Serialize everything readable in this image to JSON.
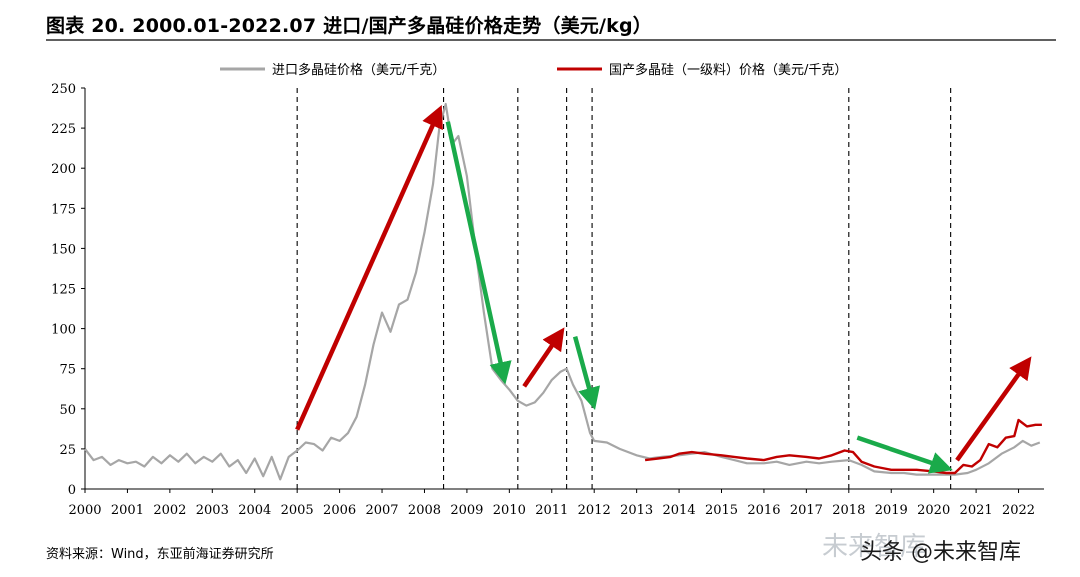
{
  "header": {
    "title": "图表 20. 2000.01-2022.07 进口/国产多晶硅价格走势（美元/kg）"
  },
  "footer": {
    "source": "资料来源：Wind，东亚前海证券研究所",
    "watermark": "未来智库",
    "credit": "头条 @未来智库"
  },
  "colors": {
    "imported": "#a6a6a6",
    "domestic": "#c00000",
    "arrow_up": "#c00000",
    "arrow_down": "#1aaa4a"
  },
  "chart_data": {
    "type": "line",
    "title": "",
    "xlabel": "",
    "ylabel": "",
    "xlim": [
      2000,
      2022.6
    ],
    "ylim": [
      0,
      250
    ],
    "yticks": [
      0,
      25,
      50,
      75,
      100,
      125,
      150,
      175,
      200,
      225,
      250
    ],
    "xticks": [
      2000,
      2001,
      2002,
      2003,
      2004,
      2005,
      2006,
      2007,
      2008,
      2009,
      2010,
      2011,
      2012,
      2013,
      2014,
      2015,
      2016,
      2017,
      2018,
      2019,
      2020,
      2021,
      2022
    ],
    "grid": false,
    "legend_position": "top",
    "series": [
      {
        "name": "进口多晶硅价格（美元/千克）",
        "color": "#a6a6a6",
        "points": [
          [
            2000.0,
            25
          ],
          [
            2000.2,
            18
          ],
          [
            2000.4,
            20
          ],
          [
            2000.6,
            15
          ],
          [
            2000.8,
            18
          ],
          [
            2001.0,
            16
          ],
          [
            2001.2,
            17
          ],
          [
            2001.4,
            14
          ],
          [
            2001.6,
            20
          ],
          [
            2001.8,
            16
          ],
          [
            2002.0,
            21
          ],
          [
            2002.2,
            17
          ],
          [
            2002.4,
            22
          ],
          [
            2002.6,
            16
          ],
          [
            2002.8,
            20
          ],
          [
            2003.0,
            17
          ],
          [
            2003.2,
            22
          ],
          [
            2003.4,
            14
          ],
          [
            2003.6,
            18
          ],
          [
            2003.8,
            10
          ],
          [
            2004.0,
            19
          ],
          [
            2004.2,
            8
          ],
          [
            2004.4,
            20
          ],
          [
            2004.6,
            6
          ],
          [
            2004.8,
            20
          ],
          [
            2005.0,
            24
          ],
          [
            2005.2,
            29
          ],
          [
            2005.4,
            28
          ],
          [
            2005.6,
            24
          ],
          [
            2005.8,
            32
          ],
          [
            2006.0,
            30
          ],
          [
            2006.2,
            35
          ],
          [
            2006.4,
            45
          ],
          [
            2006.6,
            65
          ],
          [
            2006.8,
            90
          ],
          [
            2007.0,
            110
          ],
          [
            2007.2,
            98
          ],
          [
            2007.4,
            115
          ],
          [
            2007.6,
            118
          ],
          [
            2007.8,
            135
          ],
          [
            2008.0,
            160
          ],
          [
            2008.2,
            190
          ],
          [
            2008.35,
            225
          ],
          [
            2008.5,
            240
          ],
          [
            2008.65,
            215
          ],
          [
            2008.8,
            220
          ],
          [
            2009.0,
            195
          ],
          [
            2009.2,
            150
          ],
          [
            2009.4,
            110
          ],
          [
            2009.6,
            75
          ],
          [
            2009.8,
            68
          ],
          [
            2010.0,
            62
          ],
          [
            2010.2,
            55
          ],
          [
            2010.4,
            52
          ],
          [
            2010.6,
            54
          ],
          [
            2010.8,
            60
          ],
          [
            2011.0,
            68
          ],
          [
            2011.2,
            73
          ],
          [
            2011.35,
            75
          ],
          [
            2011.5,
            65
          ],
          [
            2011.7,
            55
          ],
          [
            2011.9,
            35
          ],
          [
            2012.0,
            30
          ],
          [
            2012.3,
            29
          ],
          [
            2012.6,
            25
          ],
          [
            2013.0,
            21
          ],
          [
            2013.3,
            19
          ],
          [
            2013.6,
            20
          ],
          [
            2014.0,
            21
          ],
          [
            2014.3,
            22
          ],
          [
            2014.6,
            23
          ],
          [
            2015.0,
            20
          ],
          [
            2015.3,
            18
          ],
          [
            2015.6,
            16
          ],
          [
            2016.0,
            16
          ],
          [
            2016.3,
            17
          ],
          [
            2016.6,
            15
          ],
          [
            2017.0,
            17
          ],
          [
            2017.3,
            16
          ],
          [
            2017.6,
            17
          ],
          [
            2018.0,
            18
          ],
          [
            2018.3,
            15
          ],
          [
            2018.6,
            11
          ],
          [
            2019.0,
            10
          ],
          [
            2019.3,
            10
          ],
          [
            2019.6,
            9
          ],
          [
            2020.0,
            9
          ],
          [
            2020.3,
            9
          ],
          [
            2020.5,
            9
          ],
          [
            2020.8,
            10
          ],
          [
            2021.0,
            12
          ],
          [
            2021.3,
            16
          ],
          [
            2021.6,
            22
          ],
          [
            2021.9,
            26
          ],
          [
            2022.1,
            30
          ],
          [
            2022.3,
            27
          ],
          [
            2022.5,
            29
          ]
        ]
      },
      {
        "name": "国产多晶硅（一级料）价格（美元/千克）",
        "color": "#c00000",
        "points": [
          [
            2013.2,
            18
          ],
          [
            2013.5,
            19
          ],
          [
            2013.8,
            20
          ],
          [
            2014.0,
            22
          ],
          [
            2014.3,
            23
          ],
          [
            2014.6,
            22
          ],
          [
            2015.0,
            21
          ],
          [
            2015.3,
            20
          ],
          [
            2015.6,
            19
          ],
          [
            2016.0,
            18
          ],
          [
            2016.3,
            20
          ],
          [
            2016.6,
            21
          ],
          [
            2017.0,
            20
          ],
          [
            2017.3,
            19
          ],
          [
            2017.6,
            21
          ],
          [
            2017.9,
            24
          ],
          [
            2018.1,
            23
          ],
          [
            2018.3,
            17
          ],
          [
            2018.6,
            14
          ],
          [
            2019.0,
            12
          ],
          [
            2019.3,
            12
          ],
          [
            2019.6,
            12
          ],
          [
            2020.0,
            11
          ],
          [
            2020.3,
            10
          ],
          [
            2020.5,
            10
          ],
          [
            2020.7,
            15
          ],
          [
            2020.9,
            14
          ],
          [
            2021.1,
            18
          ],
          [
            2021.3,
            28
          ],
          [
            2021.5,
            26
          ],
          [
            2021.7,
            32
          ],
          [
            2021.9,
            33
          ],
          [
            2022.0,
            43
          ],
          [
            2022.2,
            39
          ],
          [
            2022.4,
            40
          ],
          [
            2022.55,
            40
          ]
        ]
      }
    ],
    "vlines": [
      2005.0,
      2008.45,
      2010.2,
      2011.35,
      2011.95,
      2018.0,
      2020.4
    ],
    "arrows": [
      {
        "direction": "up",
        "from": [
          2005.0,
          37
        ],
        "to": [
          2008.3,
          233
        ]
      },
      {
        "direction": "down",
        "from": [
          2008.55,
          229
        ],
        "to": [
          2009.85,
          72
        ]
      },
      {
        "direction": "up",
        "from": [
          2010.35,
          64
        ],
        "to": [
          2011.15,
          95
        ]
      },
      {
        "direction": "down",
        "from": [
          2011.55,
          95
        ],
        "to": [
          2011.95,
          56
        ]
      },
      {
        "direction": "down",
        "from": [
          2018.2,
          32
        ],
        "to": [
          2020.2,
          14
        ]
      },
      {
        "direction": "up",
        "from": [
          2020.55,
          18
        ],
        "to": [
          2022.15,
          77
        ]
      }
    ]
  }
}
